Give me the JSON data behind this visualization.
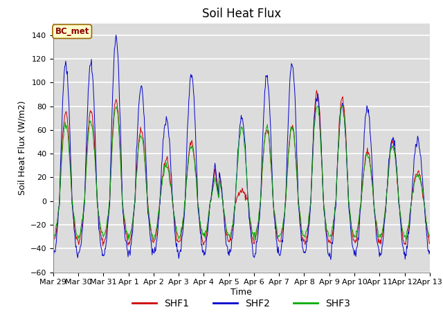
{
  "title": "Soil Heat Flux",
  "ylabel": "Soil Heat Flux (W/m2)",
  "xlabel": "Time",
  "ylim": [
    -60,
    150
  ],
  "yticks": [
    -60,
    -40,
    -20,
    0,
    20,
    40,
    60,
    80,
    100,
    120,
    140
  ],
  "background_color": "#dcdcdc",
  "grid_color": "white",
  "line_colors": {
    "SHF1": "#cc0000",
    "SHF2": "#0000cc",
    "SHF3": "#00aa00"
  },
  "legend_label": "BC_met",
  "legend_text_color": "#8b0000",
  "legend_box_color": "#ffffcc",
  "x_tick_labels": [
    "Mar 29",
    "Mar 30",
    "Mar 31",
    "Apr 1",
    "Apr 2",
    "Apr 3",
    "Apr 4",
    "Apr 5",
    "Apr 6",
    "Apr 7",
    "Apr 8",
    "Apr 9",
    "Apr 10",
    "Apr 11",
    "Apr 12",
    "Apr 13"
  ],
  "title_fontsize": 12,
  "axis_label_fontsize": 9,
  "tick_fontsize": 8
}
